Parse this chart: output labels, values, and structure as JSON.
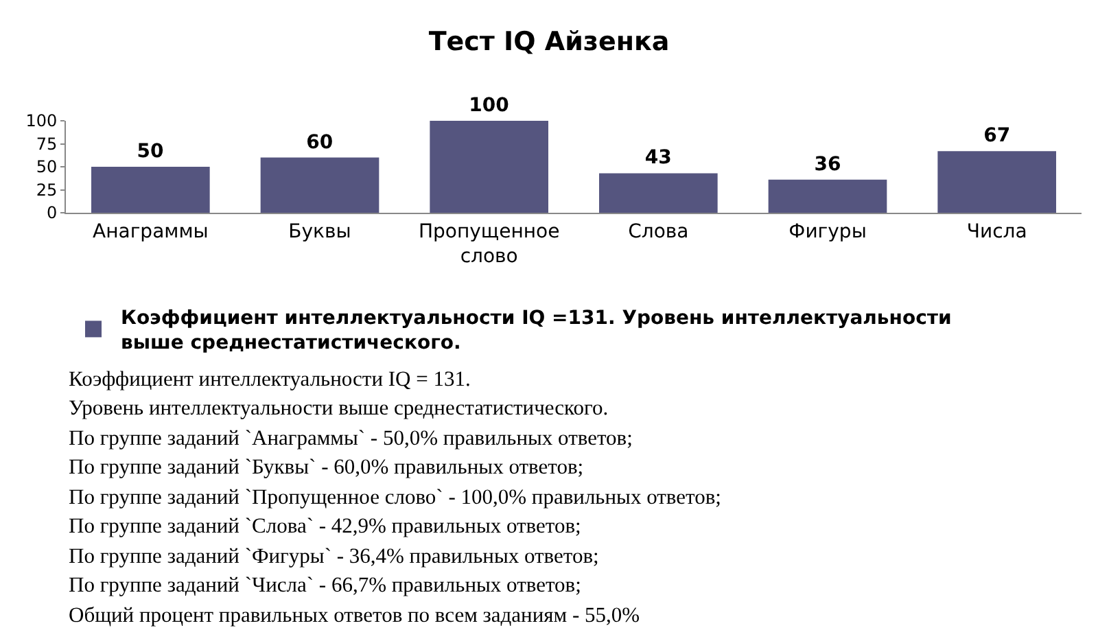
{
  "chart_data": {
    "type": "bar",
    "title": "Тест IQ Айзенка",
    "categories": [
      "Анаграммы",
      "Буквы",
      "Пропущенное слово",
      "Слова",
      "Фигуры",
      "Числа"
    ],
    "series": [
      {
        "name": "Коэффициент интеллектуальности IQ =131. Уровень интеллектуальности выше среднестатистического.",
        "color": "#55557f",
        "values": [
          50,
          60,
          100,
          43,
          36,
          67
        ]
      }
    ],
    "ylim": [
      0,
      100
    ],
    "yticks": [
      0,
      25,
      50,
      75,
      100
    ],
    "grid": false,
    "legend": "bottom",
    "data_labels": true,
    "annotations": [
      "Коэффициент интеллектуальности IQ = 131.",
      "Уровень интеллектуальности выше среднестатистического.",
      "По группе заданий `Анаграммы` - 50,0% правильных ответов;",
      "По группе заданий `Буквы` - 60,0% правильных ответов;",
      "По группе заданий `Пропущенное слово` - 100,0% правильных ответов;",
      "По группе заданий `Слова` - 42,9% правильных ответов;",
      "По группе заданий `Фигуры` - 36,4% правильных ответов;",
      "По группе заданий `Числа` - 66,7% правильных ответов;",
      "Общий процент правильных ответов по всем заданиям - 55,0%"
    ]
  }
}
